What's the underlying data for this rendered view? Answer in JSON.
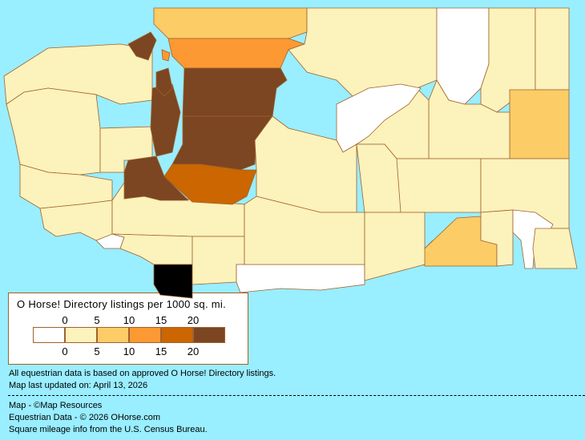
{
  "legend": {
    "title": "O Horse! Directory listings per 1000 sq. mi.",
    "top_ticks": [
      "0",
      "5",
      "10",
      "15",
      "20"
    ],
    "bottom_ticks": [
      "0",
      "5",
      "10",
      "15",
      "20"
    ],
    "colors": [
      "#FFFFFF",
      "#FCF2BB",
      "#FCCC66",
      "#FC9933",
      "#CC6600",
      "#7B4621"
    ]
  },
  "notes": {
    "data_basis": "All equestrian data is based on approved O Horse! Directory listings.",
    "last_updated": "Map last updated on: April 13, 2026"
  },
  "credits": {
    "map": "Map - ©Map Resources",
    "data": "Equestrian Data - © 2026 OHorse.com",
    "census": "Square mileage info from the U.S. Census Bureau."
  },
  "colors": {
    "water": "#99EEFF",
    "border": "#A0622D"
  }
}
